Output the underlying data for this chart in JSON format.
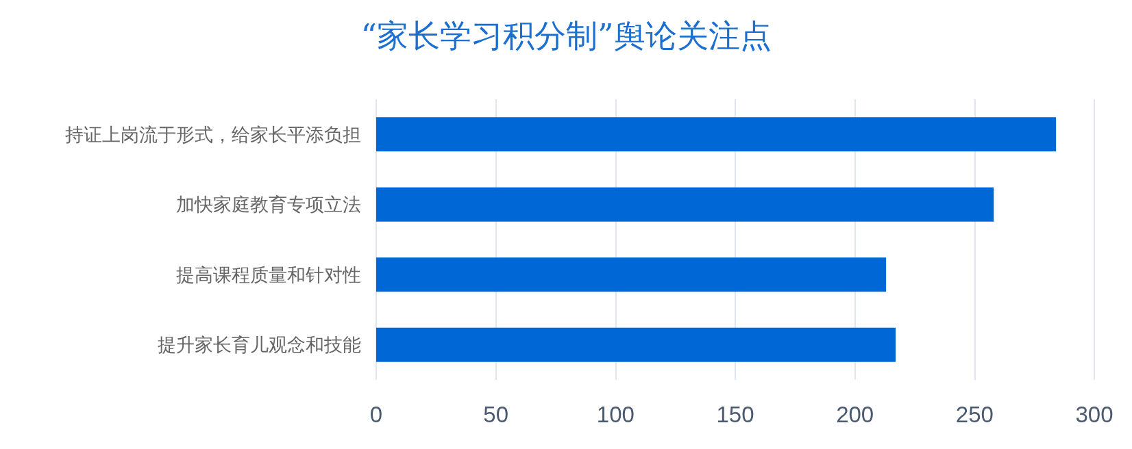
{
  "chart_data": {
    "type": "bar",
    "title": "“家长学习积分制”舆论关注点",
    "orientation": "horizontal",
    "categories": [
      "持证上岗流于形式，给家长平添负担",
      "加快家庭教育专项立法",
      "提高课程质量和针对性",
      "提升家长育儿观念和技能"
    ],
    "values": [
      284,
      258,
      213,
      217
    ],
    "color": "#0068d6",
    "xlim": [
      0,
      300
    ],
    "xticks": [
      0,
      50,
      100,
      150,
      200,
      250,
      300
    ],
    "grid": "x"
  }
}
